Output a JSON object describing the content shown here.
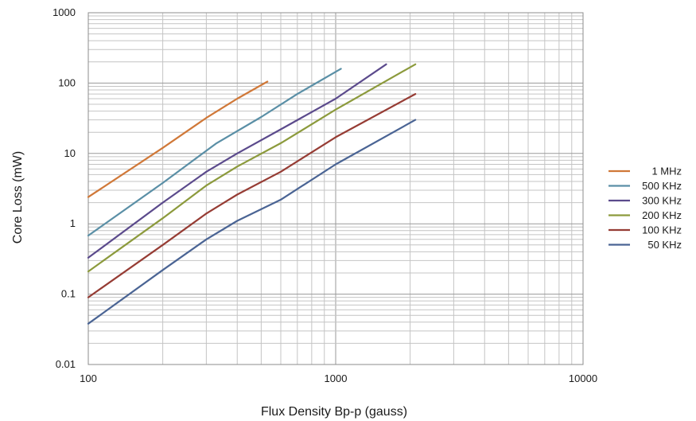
{
  "chart_data": {
    "type": "line",
    "title": "",
    "xlabel": "Flux Density Bp-p (gauss)",
    "ylabel": "Core Loss (mW)",
    "x_scale": "log",
    "y_scale": "log",
    "xlim": [
      100,
      10000
    ],
    "ylim": [
      0.01,
      1000
    ],
    "x_ticks": [
      "100",
      "1000",
      "10000"
    ],
    "y_ticks": [
      "0.01",
      "0.1",
      "1",
      "10",
      "100",
      "1000"
    ],
    "grid": true,
    "legend_position": "right",
    "series": [
      {
        "name": "1 MHz",
        "color": "#d07838",
        "points": [
          [
            100,
            2.4
          ],
          [
            200,
            12
          ],
          [
            300,
            32
          ],
          [
            400,
            60
          ],
          [
            530,
            105
          ]
        ]
      },
      {
        "name": "500 KHz",
        "color": "#5a8fa6",
        "points": [
          [
            100,
            0.68
          ],
          [
            200,
            3.8
          ],
          [
            330,
            14
          ],
          [
            500,
            33
          ],
          [
            700,
            70
          ],
          [
            1050,
            160
          ]
        ]
      },
      {
        "name": "300 KHz",
        "color": "#5b4a8c",
        "points": [
          [
            100,
            0.33
          ],
          [
            200,
            2.0
          ],
          [
            300,
            5.5
          ],
          [
            400,
            10
          ],
          [
            600,
            22
          ],
          [
            1000,
            60
          ],
          [
            1600,
            185
          ]
        ]
      },
      {
        "name": "200 KHz",
        "color": "#8c9a3c",
        "points": [
          [
            100,
            0.21
          ],
          [
            200,
            1.2
          ],
          [
            300,
            3.5
          ],
          [
            400,
            6.5
          ],
          [
            600,
            14
          ],
          [
            1000,
            42
          ],
          [
            2100,
            185
          ]
        ]
      },
      {
        "name": "100 KHz",
        "color": "#963c34",
        "points": [
          [
            100,
            0.09
          ],
          [
            200,
            0.5
          ],
          [
            300,
            1.4
          ],
          [
            400,
            2.6
          ],
          [
            600,
            5.5
          ],
          [
            1000,
            17
          ],
          [
            2100,
            70
          ]
        ]
      },
      {
        "name": "50 KHz",
        "color": "#4a6494",
        "points": [
          [
            100,
            0.038
          ],
          [
            200,
            0.22
          ],
          [
            300,
            0.6
          ],
          [
            400,
            1.1
          ],
          [
            600,
            2.2
          ],
          [
            1000,
            7
          ],
          [
            2100,
            30
          ]
        ]
      }
    ]
  }
}
